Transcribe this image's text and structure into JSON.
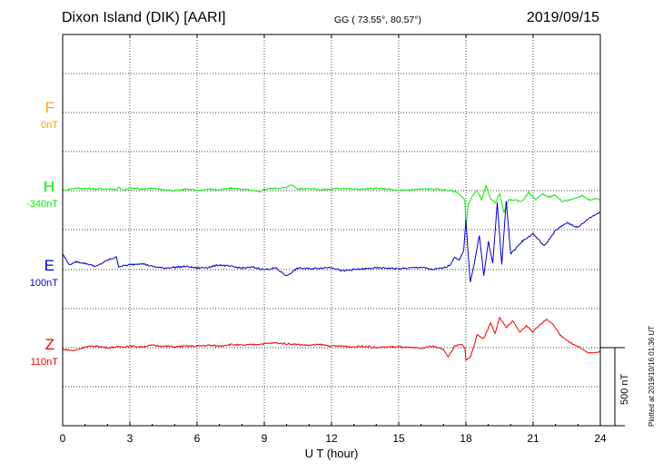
{
  "header": {
    "station": "Dixon Island (DIK)  [AARI]",
    "coords": "GG ( 73.55°,  80.57°)",
    "date": "2019/09/15"
  },
  "plotted_note": "Plotted at 2019/10/16 01:36 UT",
  "colors": {
    "F": "#ffa500",
    "H": "#00ee00",
    "E": "#0000cc",
    "Z": "#ee0000",
    "grid": "#000000"
  },
  "chart_data": {
    "type": "line",
    "xlabel": "U T (hour)",
    "x_ticks": [
      "0",
      "3",
      "6",
      "9",
      "12",
      "15",
      "18",
      "21",
      "24"
    ],
    "xlim": [
      0,
      24
    ],
    "scale_bar": {
      "label": "500 nT",
      "value_nT": 500
    },
    "grid": true,
    "series": [
      {
        "name": "F",
        "baseline_label": "0nT",
        "color": "#ffa500",
        "x": [],
        "y": []
      },
      {
        "name": "H",
        "baseline_label": "-340nT",
        "color": "#00ee00",
        "x": [
          0,
          0.5,
          1,
          1.5,
          2,
          2.4,
          2.5,
          2.7,
          3,
          3.5,
          4,
          4.5,
          5,
          5.5,
          6,
          6.5,
          7,
          7.5,
          8,
          8.5,
          8.8,
          9,
          9.5,
          10,
          10.2,
          10.5,
          11,
          11.5,
          12,
          12.5,
          13,
          13.5,
          14,
          14.5,
          15,
          15.5,
          16,
          16.5,
          17,
          17.3,
          17.6,
          17.8,
          17.95,
          18.0,
          18.1,
          18.3,
          18.5,
          18.7,
          18.9,
          19.1,
          19.3,
          19.5,
          19.7,
          19.9,
          20.2,
          20.5,
          20.8,
          21.1,
          21.4,
          21.7,
          22.0,
          22.3,
          22.6,
          22.9,
          23.2,
          23.5,
          23.8,
          24
        ],
        "y": [
          0,
          15,
          15,
          10,
          12,
          8,
          25,
          0,
          18,
          10,
          15,
          5,
          0,
          10,
          0,
          10,
          5,
          15,
          10,
          0,
          -10,
          10,
          15,
          20,
          40,
          10,
          15,
          5,
          10,
          15,
          10,
          10,
          15,
          10,
          0,
          5,
          10,
          10,
          5,
          0,
          -10,
          -35,
          -60,
          -240,
          -90,
          -30,
          0,
          -60,
          30,
          -50,
          -80,
          -20,
          -140,
          -60,
          -60,
          -70,
          -10,
          -60,
          -20,
          -40,
          -30,
          -70,
          -60,
          -50,
          -30,
          -60,
          -50,
          -60
        ]
      },
      {
        "name": "E",
        "baseline_label": "100nT",
        "color": "#0000cc",
        "x": [
          0,
          0.3,
          0.6,
          1,
          1.5,
          2,
          2.4,
          2.5,
          3,
          3.5,
          4,
          4.5,
          5,
          5.5,
          6,
          6.5,
          7,
          7.5,
          8,
          8.5,
          9,
          9.5,
          10,
          10.5,
          11,
          11.5,
          12,
          12.5,
          13,
          13.5,
          14,
          14.5,
          15,
          15.5,
          16,
          16.5,
          17,
          17.3,
          17.5,
          17.7,
          17.9,
          18.0,
          18.1,
          18.2,
          18.4,
          18.6,
          18.8,
          19.0,
          19.2,
          19.4,
          19.6,
          19.8,
          20,
          20.5,
          21,
          21.5,
          22,
          22.5,
          23,
          23.5,
          24
        ],
        "y": [
          100,
          30,
          50,
          40,
          20,
          60,
          80,
          20,
          30,
          40,
          20,
          10,
          15,
          20,
          10,
          15,
          30,
          20,
          10,
          15,
          0,
          10,
          -40,
          10,
          5,
          10,
          15,
          -10,
          0,
          5,
          10,
          10,
          5,
          10,
          15,
          0,
          10,
          30,
          80,
          60,
          120,
          320,
          100,
          -80,
          60,
          220,
          -40,
          180,
          40,
          430,
          30,
          440,
          100,
          180,
          230,
          150,
          250,
          300,
          270,
          330,
          370
        ]
      },
      {
        "name": "Z",
        "baseline_label": "110nT",
        "color": "#ee0000",
        "x": [
          0,
          0.5,
          1,
          1.5,
          2,
          2.5,
          3,
          3.5,
          4,
          4.5,
          5,
          5.5,
          6,
          6.5,
          7,
          7.5,
          8,
          8.5,
          9,
          9.5,
          10,
          10.5,
          11,
          11.5,
          12,
          12.5,
          13,
          13.5,
          14,
          14.5,
          15,
          15.5,
          16,
          16.5,
          17,
          17.2,
          17.5,
          17.8,
          17.95,
          18.0,
          18.2,
          18.5,
          18.8,
          19.1,
          19.3,
          19.5,
          19.8,
          20.1,
          20.4,
          20.7,
          21.0,
          21.3,
          21.6,
          21.9,
          22.2,
          22.5,
          22.8,
          23.1,
          23.4,
          23.7,
          24
        ],
        "y": [
          -10,
          -20,
          5,
          10,
          0,
          5,
          10,
          5,
          15,
          10,
          5,
          10,
          10,
          15,
          10,
          20,
          15,
          20,
          25,
          30,
          25,
          20,
          15,
          20,
          10,
          10,
          5,
          10,
          0,
          5,
          5,
          0,
          -5,
          10,
          -10,
          -60,
          10,
          20,
          0,
          -80,
          -60,
          80,
          60,
          160,
          90,
          190,
          130,
          170,
          100,
          140,
          100,
          150,
          180,
          150,
          80,
          50,
          20,
          0,
          -30,
          -30,
          -30
        ]
      }
    ]
  }
}
